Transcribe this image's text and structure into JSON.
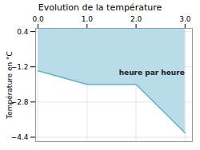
{
  "chart_data": {
    "type": "line",
    "title": "Evolution de la température",
    "ylabel": "Température en °C",
    "x": [
      0,
      1,
      2,
      3
    ],
    "values": [
      -1.38,
      -2.0,
      -2.0,
      -4.2
    ],
    "color": "#5ab4cc",
    "xlim": [
      -0.05,
      3.15
    ],
    "xticks": [
      0,
      1,
      2,
      3
    ],
    "ylim": [
      -4.6,
      0.55
    ],
    "yticks": [
      0.4,
      -1.2,
      -2.8,
      -4.4
    ],
    "grid": true,
    "annotations": [
      {
        "text": "heure par heure",
        "x": 1.65,
        "y": -1.45
      }
    ]
  }
}
